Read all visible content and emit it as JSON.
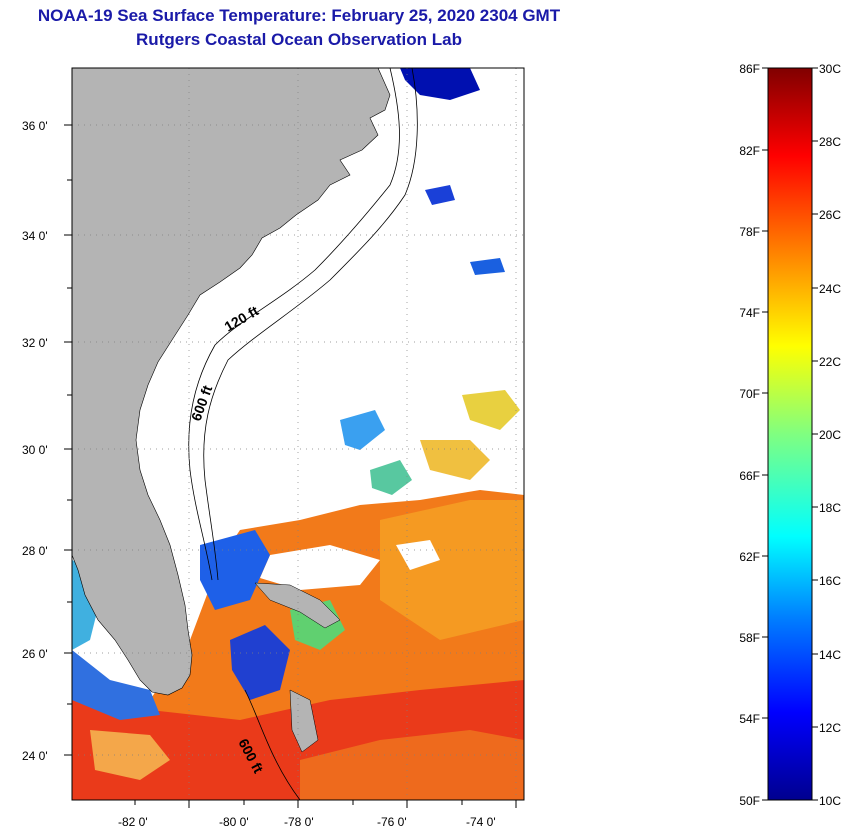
{
  "header": {
    "title": "NOAA-19 Sea Surface Temperature:  February 25, 2020 2304 GMT",
    "subtitle": "Rutgers Coastal Ocean Observation Lab"
  },
  "map": {
    "lon_labels": [
      "-82 0'",
      "-80 0'",
      "-78 0'",
      "-76 0'",
      "-74 0'"
    ],
    "lat_labels": [
      "36 0'",
      "34 0'",
      "32 0'",
      "30 0'",
      "28 0'",
      "26 0'",
      "24 0'"
    ],
    "contours": [
      {
        "label": "120 ft"
      },
      {
        "label": "600 ft"
      },
      {
        "label": "600 ft"
      }
    ],
    "colors": {
      "land": "#b4b4b4",
      "ocean_nodata": "#ffffff"
    }
  },
  "colorbar": {
    "fahrenheit_labels": [
      "86F",
      "82F",
      "78F",
      "74F",
      "70F",
      "66F",
      "62F",
      "58F",
      "54F",
      "50F"
    ],
    "celsius_labels": [
      "30C",
      "28C",
      "26C",
      "24C",
      "22C",
      "20C",
      "18C",
      "16C",
      "14C",
      "12C",
      "10C"
    ],
    "colormap": [
      "#00008f",
      "#0000ff",
      "#0080ff",
      "#00ffff",
      "#80ff80",
      "#ffff00",
      "#ff8000",
      "#ff0000",
      "#800000"
    ]
  }
}
